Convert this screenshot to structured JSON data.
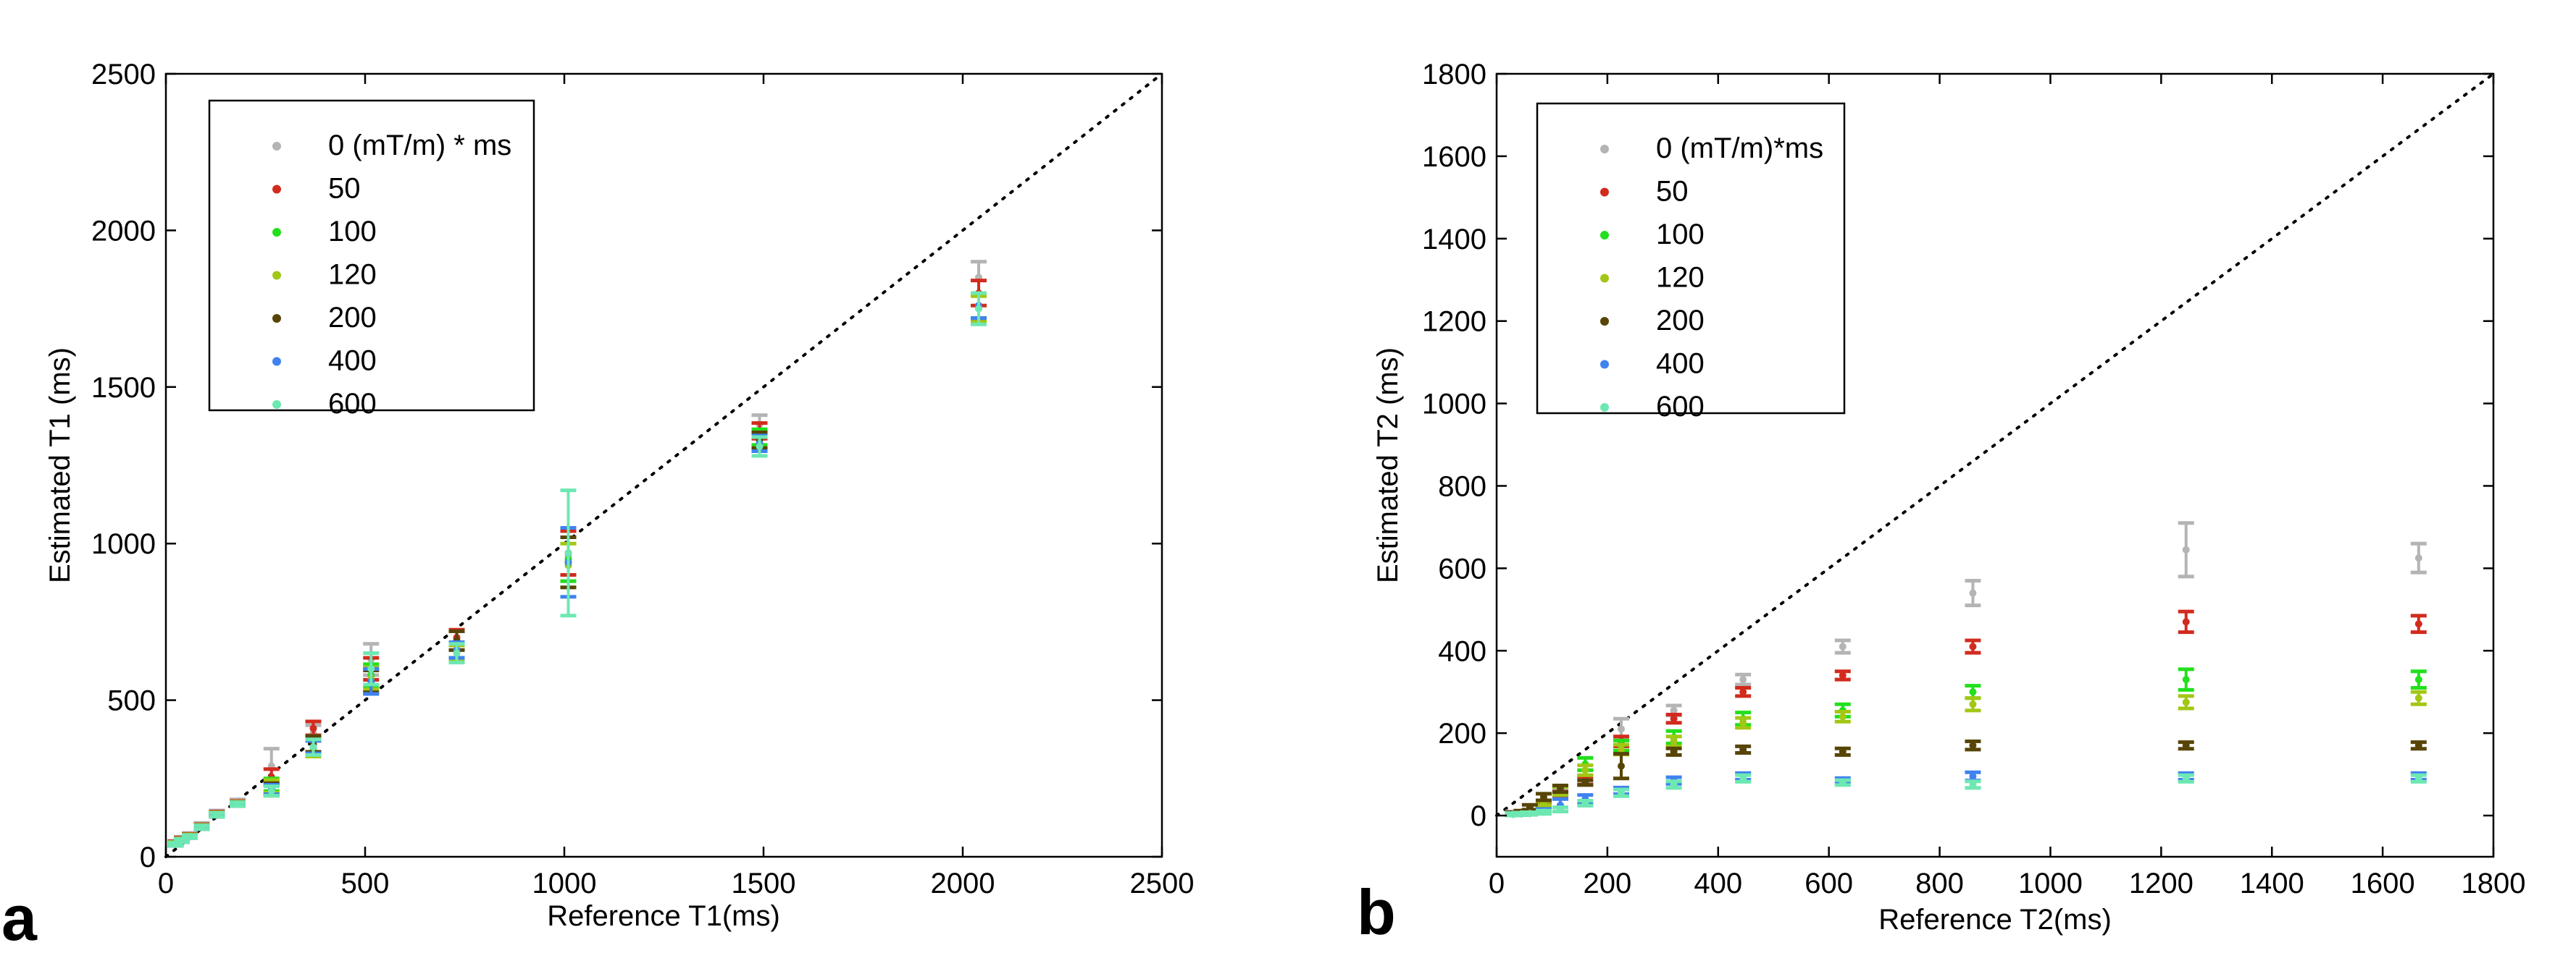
{
  "chart_data": [
    {
      "panel": "a",
      "type": "scatter",
      "title": "",
      "xlabel": "Reference T1(ms)",
      "ylabel": "Estimated T1 (ms)",
      "xlim": [
        0,
        2500
      ],
      "ylim": [
        0,
        2500
      ],
      "xticks": [
        0,
        500,
        1000,
        1500,
        2000,
        2500
      ],
      "yticks": [
        0,
        500,
        1000,
        1500,
        2000,
        2500
      ],
      "identity_line": true,
      "legend_position": "top-left",
      "series": [
        {
          "name": "0 (mT/m) * ms",
          "color": "#b4b4b4",
          "points": [
            [
              24,
              45,
              6
            ],
            [
              40,
              58,
              6
            ],
            [
              60,
              70,
              6
            ],
            [
              90,
              100,
              8
            ],
            [
              128,
              140,
              8
            ],
            [
              180,
              175,
              8
            ],
            [
              265,
              290,
              55
            ],
            [
              370,
              395,
              25
            ],
            [
              515,
              630,
              50
            ],
            [
              730,
              690,
              30
            ],
            [
              1010,
              960,
              80
            ],
            [
              1490,
              1380,
              30
            ],
            [
              2040,
              1850,
              50
            ]
          ]
        },
        {
          "name": "50",
          "color": "#d22b1e",
          "points": [
            [
              24,
              44,
              5
            ],
            [
              40,
              56,
              5
            ],
            [
              60,
              68,
              5
            ],
            [
              90,
              98,
              6
            ],
            [
              128,
              138,
              6
            ],
            [
              180,
              172,
              6
            ],
            [
              265,
              255,
              25
            ],
            [
              370,
              410,
              22
            ],
            [
              515,
              600,
              35
            ],
            [
              730,
              700,
              25
            ],
            [
              1010,
              970,
              70
            ],
            [
              1490,
              1360,
              25
            ],
            [
              2040,
              1800,
              40
            ]
          ]
        },
        {
          "name": "100",
          "color": "#22e01c",
          "points": [
            [
              24,
              42,
              5
            ],
            [
              40,
              54,
              5
            ],
            [
              60,
              66,
              5
            ],
            [
              90,
              96,
              6
            ],
            [
              128,
              136,
              6
            ],
            [
              180,
              170,
              6
            ],
            [
              265,
              230,
              20
            ],
            [
              370,
              360,
              25
            ],
            [
              515,
              580,
              35
            ],
            [
              730,
              660,
              25
            ],
            [
              1010,
              950,
              70
            ],
            [
              1490,
              1340,
              25
            ],
            [
              2040,
              1760,
              40
            ]
          ]
        },
        {
          "name": "120",
          "color": "#a2c714",
          "points": [
            [
              24,
              42,
              5
            ],
            [
              40,
              54,
              5
            ],
            [
              60,
              66,
              5
            ],
            [
              90,
              96,
              6
            ],
            [
              128,
              136,
              6
            ],
            [
              180,
              170,
              6
            ],
            [
              265,
              225,
              20
            ],
            [
              370,
              345,
              25
            ],
            [
              515,
              570,
              35
            ],
            [
              730,
              650,
              25
            ],
            [
              1010,
              930,
              70
            ],
            [
              1490,
              1330,
              25
            ],
            [
              2040,
              1750,
              40
            ]
          ]
        },
        {
          "name": "200",
          "color": "#574508",
          "points": [
            [
              24,
              40,
              5
            ],
            [
              40,
              52,
              5
            ],
            [
              60,
              64,
              5
            ],
            [
              90,
              94,
              6
            ],
            [
              128,
              134,
              6
            ],
            [
              180,
              168,
              6
            ],
            [
              265,
              215,
              20
            ],
            [
              370,
              360,
              25
            ],
            [
              515,
              560,
              35
            ],
            [
              730,
              690,
              30
            ],
            [
              1010,
              940,
              80
            ],
            [
              1490,
              1330,
              25
            ],
            [
              2040,
              1760,
              40
            ]
          ]
        },
        {
          "name": "400",
          "color": "#3f82f0",
          "points": [
            [
              24,
              40,
              5
            ],
            [
              40,
              52,
              5
            ],
            [
              60,
              64,
              5
            ],
            [
              90,
              94,
              6
            ],
            [
              128,
              134,
              6
            ],
            [
              180,
              168,
              6
            ],
            [
              265,
              215,
              15
            ],
            [
              370,
              350,
              20
            ],
            [
              515,
              560,
              40
            ],
            [
              730,
              660,
              25
            ],
            [
              1010,
              940,
              110
            ],
            [
              1490,
              1320,
              25
            ],
            [
              2040,
              1760,
              40
            ]
          ]
        },
        {
          "name": "600",
          "color": "#6ee8b2",
          "points": [
            [
              24,
              40,
              5
            ],
            [
              40,
              52,
              5
            ],
            [
              60,
              64,
              5
            ],
            [
              90,
              94,
              6
            ],
            [
              128,
              134,
              6
            ],
            [
              180,
              168,
              6
            ],
            [
              265,
              210,
              15
            ],
            [
              370,
              350,
              25
            ],
            [
              515,
              600,
              50
            ],
            [
              730,
              650,
              30
            ],
            [
              1010,
              970,
              200
            ],
            [
              1490,
              1310,
              30
            ],
            [
              2040,
              1750,
              50
            ]
          ]
        }
      ]
    },
    {
      "panel": "b",
      "type": "scatter",
      "title": "",
      "xlabel": "Reference T2(ms)",
      "ylabel": "Estimated T2 (ms)",
      "xlim": [
        0,
        1800
      ],
      "ylim": [
        -100,
        1800
      ],
      "xticks": [
        0,
        200,
        400,
        600,
        800,
        1000,
        1200,
        1400,
        1600,
        1800
      ],
      "yticks": [
        0,
        200,
        400,
        600,
        800,
        1000,
        1200,
        1400,
        1600,
        1800
      ],
      "identity_line": true,
      "legend_position": "top-left",
      "series": [
        {
          "name": "0 (mT/m)*ms",
          "color": "#b4b4b4",
          "points": [
            [
              30,
              5,
              5
            ],
            [
              45,
              6,
              5
            ],
            [
              60,
              10,
              5
            ],
            [
              85,
              25,
              5
            ],
            [
              115,
              55,
              10
            ],
            [
              160,
              95,
              15
            ],
            [
              225,
              210,
              25
            ],
            [
              320,
              255,
              12
            ],
            [
              445,
              330,
              12
            ],
            [
              625,
              410,
              15
            ],
            [
              860,
              540,
              30
            ],
            [
              1245,
              645,
              65
            ],
            [
              1665,
              625,
              35
            ]
          ]
        },
        {
          "name": "50",
          "color": "#d22b1e",
          "points": [
            [
              30,
              4,
              4
            ],
            [
              45,
              5,
              4
            ],
            [
              60,
              8,
              4
            ],
            [
              85,
              22,
              5
            ],
            [
              115,
              50,
              8
            ],
            [
              160,
              85,
              10
            ],
            [
              225,
              180,
              12
            ],
            [
              320,
              235,
              10
            ],
            [
              445,
              300,
              10
            ],
            [
              625,
              340,
              10
            ],
            [
              860,
              410,
              15
            ],
            [
              1245,
              470,
              25
            ],
            [
              1665,
              465,
              20
            ]
          ]
        },
        {
          "name": "100",
          "color": "#22e01c",
          "points": [
            [
              30,
              4,
              4
            ],
            [
              45,
              5,
              4
            ],
            [
              60,
              8,
              4
            ],
            [
              85,
              30,
              5
            ],
            [
              115,
              60,
              10
            ],
            [
              160,
              125,
              15
            ],
            [
              225,
              170,
              12
            ],
            [
              320,
              190,
              15
            ],
            [
              445,
              235,
              15
            ],
            [
              625,
              255,
              15
            ],
            [
              860,
              300,
              15
            ],
            [
              1245,
              330,
              25
            ],
            [
              1665,
              330,
              20
            ]
          ]
        },
        {
          "name": "120",
          "color": "#a2c714",
          "points": [
            [
              30,
              4,
              4
            ],
            [
              45,
              5,
              4
            ],
            [
              60,
              8,
              4
            ],
            [
              85,
              30,
              5
            ],
            [
              115,
              60,
              10
            ],
            [
              160,
              110,
              12
            ],
            [
              225,
              160,
              12
            ],
            [
              320,
              180,
              12
            ],
            [
              445,
              225,
              12
            ],
            [
              625,
              240,
              12
            ],
            [
              860,
              270,
              15
            ],
            [
              1245,
              275,
              15
            ],
            [
              1665,
              285,
              15
            ]
          ]
        },
        {
          "name": "200",
          "color": "#574508",
          "points": [
            [
              30,
              4,
              4
            ],
            [
              45,
              8,
              4
            ],
            [
              60,
              20,
              6
            ],
            [
              85,
              45,
              8
            ],
            [
              115,
              65,
              8
            ],
            [
              160,
              80,
              6
            ],
            [
              225,
              120,
              30
            ],
            [
              320,
              155,
              8
            ],
            [
              445,
              160,
              8
            ],
            [
              625,
              155,
              8
            ],
            [
              860,
              170,
              10
            ],
            [
              1245,
              170,
              8
            ],
            [
              1665,
              170,
              8
            ]
          ]
        },
        {
          "name": "400",
          "color": "#3f82f0",
          "points": [
            [
              30,
              3,
              3
            ],
            [
              45,
              4,
              3
            ],
            [
              60,
              5,
              3
            ],
            [
              85,
              12,
              4
            ],
            [
              115,
              25,
              15
            ],
            [
              160,
              40,
              10
            ],
            [
              225,
              60,
              8
            ],
            [
              320,
              85,
              8
            ],
            [
              445,
              95,
              8
            ],
            [
              625,
              85,
              6
            ],
            [
              860,
              95,
              10
            ],
            [
              1245,
              95,
              8
            ],
            [
              1665,
              95,
              8
            ]
          ]
        },
        {
          "name": "600",
          "color": "#6ee8b2",
          "points": [
            [
              30,
              3,
              3
            ],
            [
              45,
              4,
              3
            ],
            [
              60,
              5,
              3
            ],
            [
              85,
              8,
              4
            ],
            [
              115,
              15,
              5
            ],
            [
              160,
              30,
              6
            ],
            [
              225,
              55,
              8
            ],
            [
              320,
              75,
              8
            ],
            [
              445,
              90,
              8
            ],
            [
              625,
              80,
              6
            ],
            [
              860,
              75,
              8
            ],
            [
              1245,
              90,
              8
            ],
            [
              1665,
              90,
              8
            ]
          ]
        }
      ]
    }
  ],
  "panel_labels": [
    "a",
    "b"
  ]
}
